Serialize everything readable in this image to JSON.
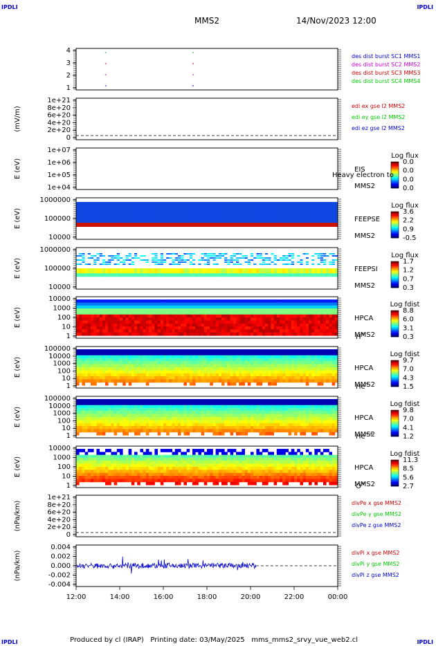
{
  "corner_label": "IPDLI",
  "header": {
    "spacecraft": "MMS2",
    "datetime": "14/Nov/2023 12:00"
  },
  "footer": {
    "produced": "Produced by cl (IRAP)",
    "printing": "Printing date: 03/May/2025",
    "script": "mms_mms2_srvy_vue_web2.cl"
  },
  "colors": {
    "blue": "#0000cc",
    "red": "#cc0000",
    "green": "#00cc00",
    "magenta": "#cc00cc"
  },
  "chart_data": [
    {
      "type": "scatter",
      "panel": "des-dist",
      "yticks": [
        "4",
        "3",
        "2",
        "1"
      ],
      "legend": [
        {
          "text": "des dist burst SC1 MMS1",
          "color": "#0000cc"
        },
        {
          "text": "des dist burst SC2 MMS2",
          "color": "#cc00cc"
        },
        {
          "text": "des dist burst SC3 MMS3",
          "color": "#cc0000"
        },
        {
          "text": "des dist burst SC4 MMS4",
          "color": "#00cc00"
        }
      ],
      "marks_x_hours": [
        13.33,
        17.33
      ]
    },
    {
      "type": "line",
      "panel": "edi",
      "ylabel": "(mV/m)",
      "yticks": [
        "1e+21",
        "8e+20",
        "6e+20",
        "4e+20",
        "2e+20",
        "0"
      ],
      "legend": [
        {
          "text": "edi ex gse l2 MMS2",
          "color": "#cc0000"
        },
        {
          "text": "edi ey gse l2 MMS2",
          "color": "#00cc00"
        },
        {
          "text": "edi ez gse l2 MMS2",
          "color": "#0000cc"
        }
      ]
    },
    {
      "type": "heatmap",
      "panel": "eis",
      "ylabel": "E (eV)",
      "yticks": [
        "1e+07",
        "1e+06",
        "1e+05",
        "1e+04"
      ],
      "labels": [
        "EIS",
        "MMS2"
      ],
      "overlay": "Heavy electron to",
      "colorbar": {
        "title": "Log flux",
        "ticks": [
          "0.0",
          "0.0",
          "0.0",
          "0.0"
        ]
      }
    },
    {
      "type": "heatmap",
      "panel": "feepse",
      "ylabel": "E (eV)",
      "yticks": [
        "1000000",
        "100000",
        "10000"
      ],
      "labels": [
        "FEEPSE",
        "MMS2"
      ],
      "colorbar": {
        "title": "Log flux",
        "ticks": [
          "3.6",
          "2.2",
          "0.9",
          "-0.5"
        ]
      }
    },
    {
      "type": "heatmap",
      "panel": "feepsi",
      "ylabel": "E (eV)",
      "yticks": [
        "1000000",
        "100000",
        "10000"
      ],
      "labels": [
        "FEEPSI",
        "MMS2"
      ],
      "colorbar": {
        "title": "Log flux",
        "ticks": [
          "1.7",
          "1.2",
          "0.7",
          "0.3"
        ]
      }
    },
    {
      "type": "heatmap",
      "panel": "hpca-h",
      "ylabel": "E (eV)",
      "yticks": [
        "10000",
        "1000",
        "100",
        "10",
        "1"
      ],
      "labels": [
        "HPCA",
        "MMS2"
      ],
      "species": "H",
      "species_sup": "+",
      "colorbar": {
        "title": "Log fdist",
        "ticks": [
          "8.8",
          "6.0",
          "3.1",
          "0.3"
        ]
      }
    },
    {
      "type": "heatmap",
      "panel": "hpca-he",
      "ylabel": "E (eV)",
      "yticks": [
        "100000",
        "10000",
        "1000",
        "100",
        "10",
        "1"
      ],
      "labels": [
        "HPCA",
        "MMS2"
      ],
      "species": "He",
      "species_sup": "+",
      "colorbar": {
        "title": "Log fdist",
        "ticks": [
          "9.7",
          "7.0",
          "4.3",
          "1.5"
        ]
      }
    },
    {
      "type": "heatmap",
      "panel": "hpca-hepp",
      "ylabel": "E (eV)",
      "yticks": [
        "100000",
        "10000",
        "1000",
        "100",
        "10",
        "1"
      ],
      "labels": [
        "HPCA",
        "MMS2"
      ],
      "species": "He",
      "species_sup": "++",
      "colorbar": {
        "title": "Log fdist",
        "ticks": [
          "9.8",
          "7.0",
          "4.1",
          "1.2"
        ]
      }
    },
    {
      "type": "heatmap",
      "panel": "hpca-o",
      "ylabel": "E (eV)",
      "yticks": [
        "10000",
        "1000",
        "100",
        "10",
        "1"
      ],
      "labels": [
        "HPCA",
        "MMS2"
      ],
      "species": "O",
      "species_sup": "+",
      "colorbar": {
        "title": "Log fdist",
        "ticks": [
          "11.3",
          "8.5",
          "5.6",
          "2.7"
        ]
      }
    },
    {
      "type": "line",
      "panel": "divpe",
      "ylabel": "(nPa/km)",
      "yticks": [
        "1e+21",
        "8e+20",
        "6e+20",
        "4e+20",
        "2e+20",
        "0"
      ],
      "legend": [
        {
          "text": "divPe x gse MMS2",
          "color": "#cc0000"
        },
        {
          "text": "divPe y gse MMS2",
          "color": "#00cc00"
        },
        {
          "text": "divPe z gse MMS2",
          "color": "#0000cc"
        }
      ]
    },
    {
      "type": "line",
      "panel": "divpi",
      "ylabel": "(nPa/km)",
      "yticks": [
        "0.004",
        "0.002",
        "0.000",
        "-0.002",
        "-0.004"
      ],
      "ylim": [
        -0.0045,
        0.0045
      ],
      "data_end_hour": 20.25,
      "legend": [
        {
          "text": "divPi x gse MMS2",
          "color": "#cc0000"
        },
        {
          "text": "divPi y gse MMS2",
          "color": "#00cc00"
        },
        {
          "text": "divPi z gse MMS2",
          "color": "#0000cc"
        }
      ]
    }
  ],
  "xaxis": {
    "ticks": [
      "12:00",
      "14:00",
      "16:00",
      "18:00",
      "20:00",
      "22:00",
      "00:00"
    ],
    "range_hours": [
      12,
      24
    ]
  }
}
